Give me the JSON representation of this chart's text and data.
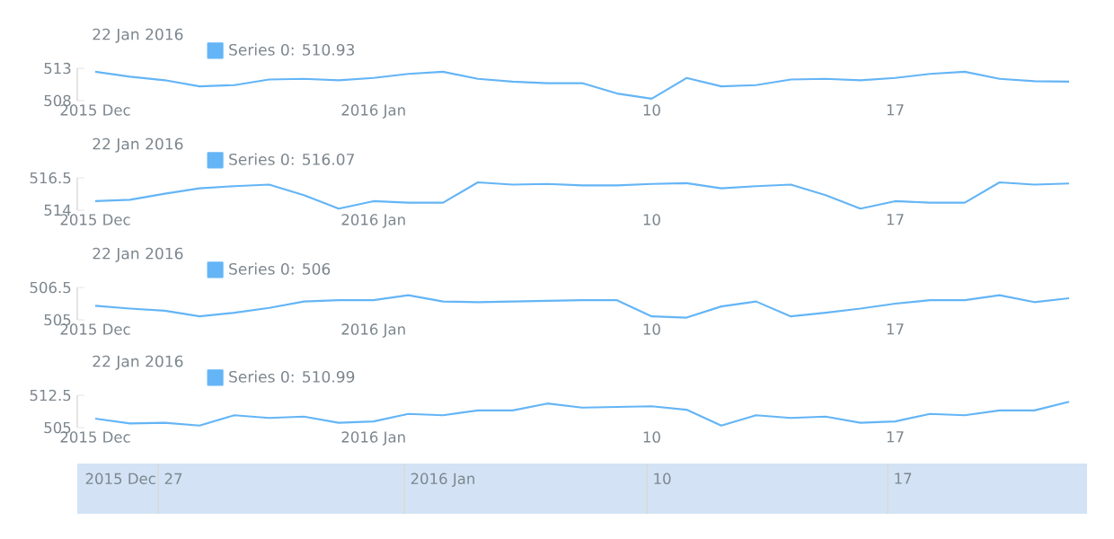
{
  "chart_data": [
    {
      "type": "line",
      "title": "22 Jan 2016",
      "legend": "top left",
      "categories": [
        "2015 Dec",
        null,
        null,
        null,
        null,
        null,
        null,
        null,
        "2016 Jan",
        null,
        null,
        null,
        null,
        null,
        null,
        null,
        "10",
        null,
        null,
        null,
        null,
        null,
        null,
        "17",
        null,
        null,
        null,
        null,
        null
      ],
      "ylim": [
        508,
        513
      ],
      "yticks": [
        508,
        513
      ],
      "series": [
        {
          "name": "Series 0: 510.93",
          "color": "#64b5f6",
          "values": [
            512.46,
            511.7,
            511.15,
            510.2,
            510.4,
            511.26,
            511.37,
            511.15,
            511.5,
            512.13,
            512.46,
            511.37,
            510.93,
            510.7,
            510.7,
            509.1,
            508.3,
            511.5,
            510.2,
            510.4,
            511.26,
            511.37,
            511.15,
            511.5,
            512.13,
            512.46,
            511.37,
            511.0,
            510.93
          ]
        }
      ]
    },
    {
      "type": "line",
      "title": "22 Jan 2016",
      "legend": "top left",
      "categories": [
        "2015 Dec",
        null,
        null,
        null,
        null,
        null,
        null,
        null,
        "2016 Jan",
        null,
        null,
        null,
        null,
        null,
        null,
        null,
        "10",
        null,
        null,
        null,
        null,
        null,
        null,
        "17",
        null,
        null,
        null,
        null,
        null
      ],
      "ylim": [
        514,
        516.5
      ],
      "yticks": [
        514,
        516.5
      ],
      "series": [
        {
          "name": "Series 0: 516.07",
          "color": "#64b5f6",
          "values": [
            514.7,
            514.81,
            515.28,
            515.69,
            515.86,
            515.98,
            515.16,
            514.12,
            514.7,
            514.58,
            514.58,
            516.15,
            515.98,
            516.03,
            515.92,
            515.92,
            516.03,
            516.09,
            515.69,
            515.86,
            515.98,
            515.16,
            514.12,
            514.7,
            514.58,
            514.58,
            516.15,
            515.98,
            516.07
          ]
        }
      ]
    },
    {
      "type": "line",
      "title": "22 Jan 2016",
      "legend": "top left",
      "categories": [
        "2015 Dec",
        null,
        null,
        null,
        null,
        null,
        null,
        null,
        "2016 Jan",
        null,
        null,
        null,
        null,
        null,
        null,
        null,
        "10",
        null,
        null,
        null,
        null,
        null,
        null,
        "17",
        null,
        null,
        null,
        null,
        null
      ],
      "ylim": [
        505,
        506.5
      ],
      "yticks": [
        505,
        506.5
      ],
      "series": [
        {
          "name": "Series 0: 506",
          "color": "#64b5f6",
          "values": [
            505.65,
            505.52,
            505.42,
            505.16,
            505.33,
            505.55,
            505.85,
            505.91,
            505.91,
            506.14,
            505.85,
            505.82,
            505.85,
            505.88,
            505.91,
            505.91,
            505.16,
            505.1,
            505.62,
            505.85,
            505.16,
            505.33,
            505.52,
            505.75,
            505.91,
            505.91,
            506.14,
            505.82,
            506
          ]
        }
      ]
    },
    {
      "type": "line",
      "title": "22 Jan 2016",
      "legend": "top left",
      "categories": [
        "2015 Dec",
        null,
        null,
        null,
        null,
        null,
        null,
        null,
        "2016 Jan",
        null,
        null,
        null,
        null,
        null,
        null,
        null,
        "10",
        null,
        null,
        null,
        null,
        null,
        null,
        "17",
        null,
        null,
        null,
        null,
        null
      ],
      "ylim": [
        505,
        512.5
      ],
      "yticks": [
        505,
        512.5
      ],
      "series": [
        {
          "name": "Series 0: 510.99",
          "color": "#64b5f6",
          "values": [
            507.08,
            505.96,
            506.12,
            505.48,
            507.87,
            507.24,
            507.55,
            506.12,
            506.44,
            508.19,
            507.87,
            508.99,
            508.99,
            510.59,
            509.63,
            509.79,
            509.95,
            509.15,
            505.48,
            507.87,
            507.24,
            507.55,
            506.12,
            506.44,
            508.19,
            507.87,
            508.99,
            508.99,
            510.99
          ]
        }
      ]
    },
    {
      "type": "other",
      "annotations": [
        "2015 Dec",
        "27",
        "2016 Jan",
        "10",
        "17"
      ]
    }
  ]
}
